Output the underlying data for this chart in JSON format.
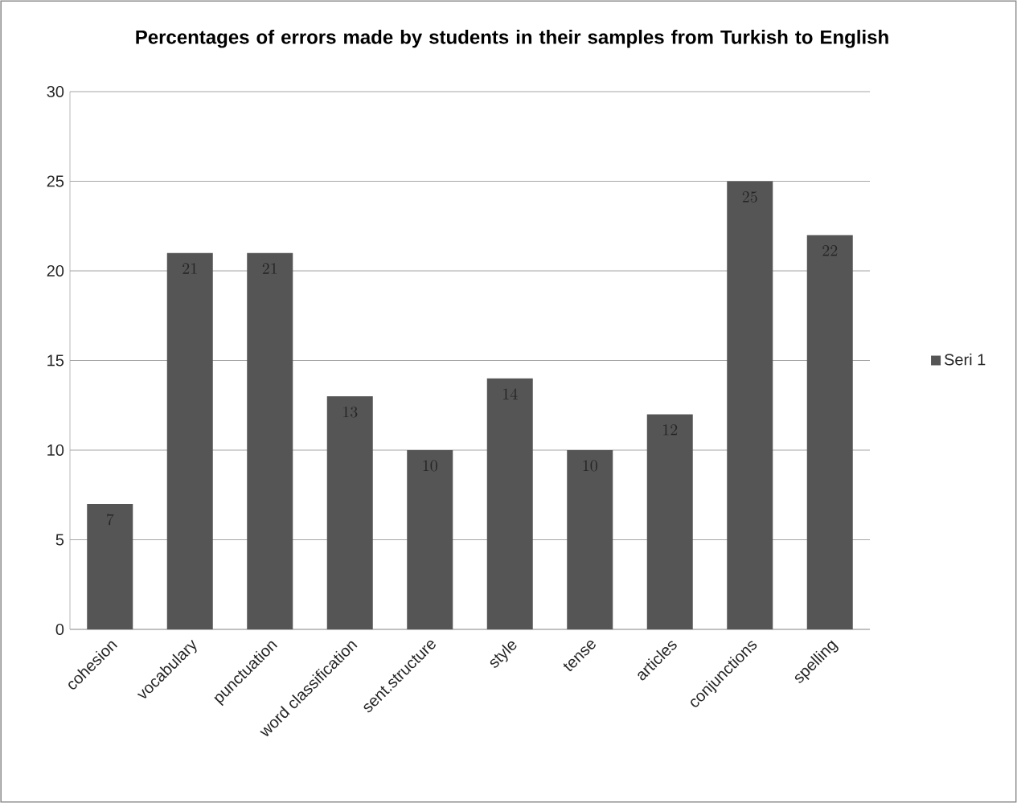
{
  "chart_data": {
    "type": "bar",
    "title": "Percentages of errors made by students in their samples from Turkish to English",
    "categories": [
      "cohesion",
      "vocabulary",
      "punctuation",
      "word classification",
      "sent.structure",
      "style",
      "tense",
      "articles",
      "conjunctions",
      "spelling"
    ],
    "series": [
      {
        "name": "Seri 1",
        "color": "#555555",
        "values": [
          7,
          21,
          21,
          13,
          10,
          14,
          10,
          12,
          25,
          22
        ]
      }
    ],
    "ylim": [
      0,
      30
    ],
    "yticks": [
      0,
      5,
      10,
      15,
      20,
      25,
      30
    ],
    "grid": "y",
    "legend": "right",
    "data_labels": true
  }
}
